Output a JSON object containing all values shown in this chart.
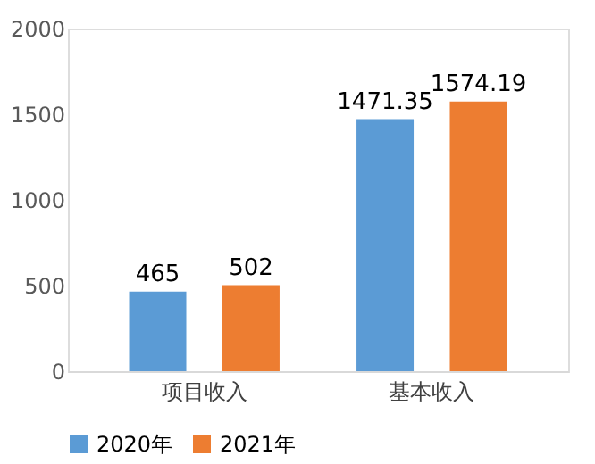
{
  "chart_data": {
    "type": "bar",
    "categories": [
      "项目收入",
      "基本收入"
    ],
    "series": [
      {
        "name": "2020年",
        "color": "#5b9bd5",
        "values": [
          465,
          1471.35
        ]
      },
      {
        "name": "2021年",
        "color": "#ed7d31",
        "values": [
          502,
          1574.19
        ]
      }
    ],
    "ylim": [
      0,
      2000
    ],
    "yticks": [
      0,
      500,
      1000,
      1500,
      2000
    ],
    "grid": false,
    "legend": "bottom",
    "data_labels": true
  }
}
